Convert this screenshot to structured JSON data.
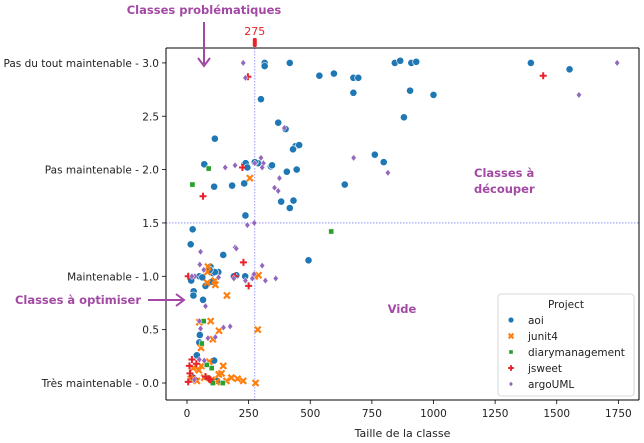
{
  "chart_data": {
    "type": "scatter",
    "title": "",
    "xlabel": "Taille de la classe",
    "ylabel": "",
    "xlim": [
      -85,
      1835
    ],
    "ylim": [
      -0.16,
      3.15
    ],
    "grid": false,
    "x_ticks": [
      0,
      250,
      500,
      750,
      1000,
      1250,
      1500,
      1750
    ],
    "x_tick_labels": [
      "0",
      "250",
      "500",
      "750",
      "1000",
      "1250",
      "1500",
      "1750"
    ],
    "y_ticks": [
      0.0,
      0.5,
      1.0,
      1.5,
      2.0,
      2.5,
      3.0
    ],
    "y_tick_labels": [
      "Très maintenable - 0.0",
      "0.5",
      "Maintenable - 1.0",
      "1.5",
      "Pas maintenable - 2.0",
      "2.5",
      "Pas du tout maintenable - 3.0"
    ],
    "legend": {
      "title": "Project",
      "position": "lower-right",
      "entries": [
        "aoi",
        "junit4",
        "diarymanagement",
        "jsweet",
        "argoUML"
      ]
    },
    "reference_lines": {
      "vertical_x": 275,
      "vertical_label": "275",
      "horizontal_y": 1.5
    },
    "annotations": [
      {
        "text": "Classes problématiques",
        "arrow": "down"
      },
      {
        "text": "Classes à optimiser",
        "arrow": "right"
      },
      {
        "text": "Classes à découper",
        "lines": [
          "Classes à",
          "découper"
        ]
      },
      {
        "text": "Vide"
      }
    ],
    "series": [
      {
        "name": "aoi",
        "marker": "circle",
        "color": "#1f77b4",
        "points": [
          [
            315,
            3.0
          ],
          [
            315,
            2.97
          ],
          [
            417,
            3.0
          ],
          [
            537,
            2.88
          ],
          [
            596,
            2.9
          ],
          [
            675,
            2.86
          ],
          [
            695,
            2.86
          ],
          [
            675,
            2.72
          ],
          [
            843,
            3.0
          ],
          [
            865,
            3.02
          ],
          [
            910,
            3.0
          ],
          [
            930,
            3.01
          ],
          [
            1395,
            3.0
          ],
          [
            1552,
            2.94
          ],
          [
            880,
            2.49
          ],
          [
            905,
            2.74
          ],
          [
            1000,
            2.7
          ],
          [
            300,
            2.66
          ],
          [
            370,
            2.44
          ],
          [
            400,
            2.38
          ],
          [
            440,
            2.22
          ],
          [
            455,
            2.23
          ],
          [
            430,
            2.19
          ],
          [
            113,
            2.29
          ],
          [
            288,
            2.06
          ],
          [
            275,
            2.07
          ],
          [
            340,
            2.03
          ],
          [
            345,
            2.04
          ],
          [
            405,
            1.98
          ],
          [
            445,
            2.0
          ],
          [
            233,
            2.05
          ],
          [
            238,
            2.06
          ],
          [
            245,
            2.02
          ],
          [
            70,
            2.05
          ],
          [
            110,
            1.84
          ],
          [
            183,
            1.85
          ],
          [
            232,
            1.87
          ],
          [
            432,
            1.71
          ],
          [
            417,
            1.64
          ],
          [
            382,
            1.7
          ],
          [
            640,
            1.86
          ],
          [
            762,
            2.14
          ],
          [
            798,
            2.07
          ],
          [
            237,
            1.57
          ],
          [
            23,
            1.44
          ],
          [
            15,
            1.3
          ],
          [
            493,
            1.15
          ],
          [
            147,
            1.2
          ],
          [
            95,
            1.09
          ],
          [
            105,
            1.03
          ],
          [
            127,
            1.04
          ],
          [
            75,
            0.91
          ],
          [
            50,
            1.0
          ],
          [
            62,
            0.99
          ],
          [
            17,
            0.96
          ],
          [
            27,
            0.86
          ],
          [
            26,
            0.82
          ],
          [
            65,
            0.78
          ],
          [
            103,
            0.95
          ],
          [
            113,
            1.04
          ],
          [
            92,
            1.06
          ],
          [
            200,
            1.01
          ],
          [
            190,
            1.0
          ],
          [
            236,
            1.0
          ],
          [
            275,
            1.01
          ],
          [
            52,
            0.45
          ],
          [
            123,
            0.02
          ],
          [
            110,
            0.21
          ],
          [
            40,
            0.26
          ],
          [
            50,
            0.38
          ],
          [
            25,
            0.05
          ],
          [
            30,
            0.03
          ]
        ]
      },
      {
        "name": "junit4",
        "marker": "x",
        "color": "#ff7f0e",
        "points": [
          [
            255,
            1.92
          ],
          [
            290,
            1.01
          ],
          [
            275,
            1.0
          ],
          [
            85,
            1.09
          ],
          [
            83,
            1.04
          ],
          [
            113,
            0.96
          ],
          [
            82,
            0.94
          ],
          [
            115,
            0.92
          ],
          [
            162,
            0.82
          ],
          [
            50,
            0.57
          ],
          [
            96,
            0.58
          ],
          [
            130,
            0.49
          ],
          [
            287,
            0.5
          ],
          [
            105,
            0.41
          ],
          [
            57,
            0.33
          ],
          [
            140,
            0.09
          ],
          [
            129,
            0.08
          ],
          [
            147,
            0.16
          ],
          [
            228,
            0.02
          ],
          [
            205,
            0.04
          ],
          [
            180,
            0.05
          ],
          [
            160,
            0.02
          ],
          [
            278,
            0.0
          ],
          [
            90,
            0.2
          ],
          [
            58,
            0.16
          ],
          [
            25,
            0.14
          ],
          [
            48,
            0.12
          ],
          [
            70,
            0.05
          ],
          [
            40,
            0.02
          ],
          [
            15,
            0.04
          ],
          [
            100,
            0.03
          ],
          [
            120,
            0.01
          ]
        ]
      },
      {
        "name": "diarymanagement",
        "marker": "square",
        "color": "#2ca02c",
        "points": [
          [
            88,
            2.01
          ],
          [
            22,
            1.86
          ],
          [
            585,
            1.42
          ],
          [
            68,
            0.58
          ],
          [
            60,
            0.37
          ],
          [
            100,
            0.14
          ],
          [
            80,
            0.17
          ],
          [
            105,
            0.0
          ],
          [
            145,
            0.0
          ],
          [
            85,
            0.05
          ]
        ]
      },
      {
        "name": "jsweet",
        "marker": "plus",
        "color": "#e8212a",
        "points": [
          [
            247,
            2.87
          ],
          [
            1445,
            2.88
          ],
          [
            65,
            1.75
          ],
          [
            225,
            2.02
          ],
          [
            229,
            1.13
          ],
          [
            250,
            0.91
          ],
          [
            5,
            1.0
          ],
          [
            195,
            1.0
          ],
          [
            20,
            0.22
          ],
          [
            38,
            0.18
          ],
          [
            10,
            0.16
          ],
          [
            12,
            0.09
          ],
          [
            30,
            0.04
          ],
          [
            88,
            0.04
          ],
          [
            75,
            0.06
          ],
          [
            5,
            0.01
          ],
          [
            95,
            0.03
          ]
        ]
      },
      {
        "name": "argoUML",
        "marker": "diamond",
        "color": "#9467bd",
        "points": [
          [
            228,
            3.0
          ],
          [
            237,
            2.86
          ],
          [
            395,
            2.39
          ],
          [
            275,
            2.06
          ],
          [
            310,
            2.06
          ],
          [
            300,
            2.11
          ],
          [
            305,
            2.02
          ],
          [
            155,
            2.02
          ],
          [
            195,
            2.04
          ],
          [
            375,
            1.92
          ],
          [
            370,
            1.8
          ],
          [
            355,
            1.83
          ],
          [
            1745,
            3.0
          ],
          [
            1590,
            2.7
          ],
          [
            676,
            2.11
          ],
          [
            815,
            1.97
          ],
          [
            273,
            1.5
          ],
          [
            245,
            1.48
          ],
          [
            195,
            1.27
          ],
          [
            200,
            1.26
          ],
          [
            55,
            1.23
          ],
          [
            52,
            1.11
          ],
          [
            68,
            1.06
          ],
          [
            32,
            1.0
          ],
          [
            128,
            0.99
          ],
          [
            190,
            0.98
          ],
          [
            265,
            0.98
          ],
          [
            272,
            1.02
          ],
          [
            305,
            1.1
          ],
          [
            318,
            0.96
          ],
          [
            360,
            0.98
          ],
          [
            237,
            0.96
          ],
          [
            20,
            1.0
          ],
          [
            75,
            0.72
          ],
          [
            50,
            0.58
          ],
          [
            55,
            0.51
          ],
          [
            148,
            0.52
          ],
          [
            175,
            0.53
          ],
          [
            85,
            0.42
          ],
          [
            115,
            0.43
          ],
          [
            70,
            0.21
          ],
          [
            50,
            0.22
          ],
          [
            30,
            0.03
          ]
        ]
      }
    ]
  }
}
